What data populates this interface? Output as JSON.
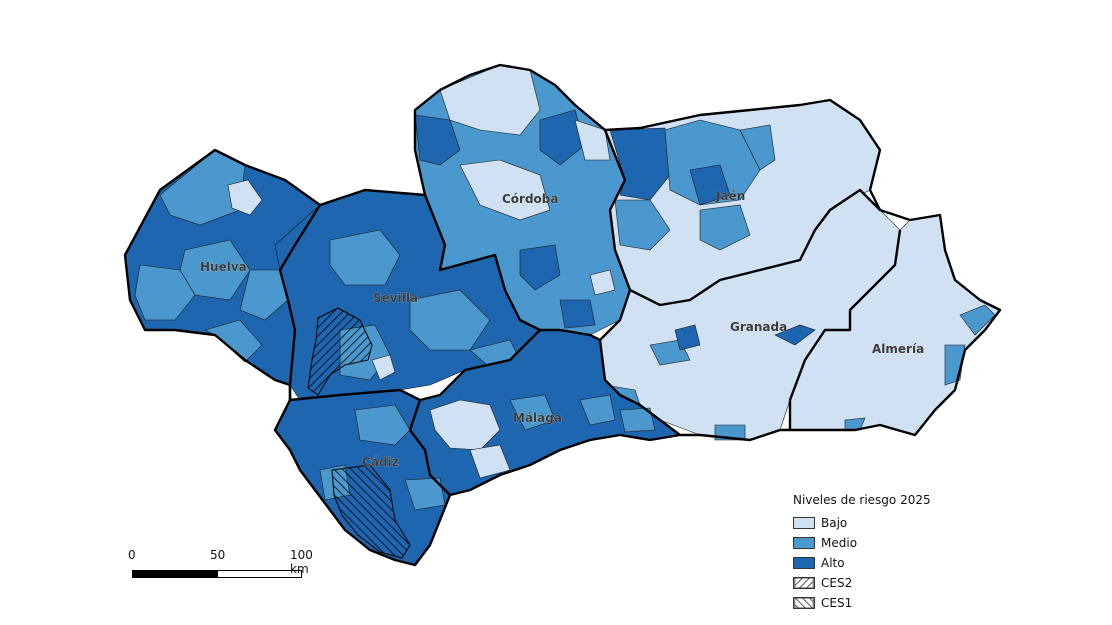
{
  "colors": {
    "bajo": "#cfe1f2",
    "medio": "#4a98cd",
    "alto": "#1f66b0",
    "border": "#000000",
    "background": "#ffffff"
  },
  "provinces": [
    {
      "name": "Huelva"
    },
    {
      "name": "Sevilla"
    },
    {
      "name": "Córdoba"
    },
    {
      "name": "Jaén"
    },
    {
      "name": "Granada"
    },
    {
      "name": "Almería"
    },
    {
      "name": "Málaga"
    },
    {
      "name": "Cádiz"
    }
  ],
  "legend": {
    "title": "Niveles de riesgo 2025",
    "items": [
      {
        "label": "Bajo",
        "fill": "#cfe1f2",
        "pattern": "none"
      },
      {
        "label": "Medio",
        "fill": "#4a98cd",
        "pattern": "none"
      },
      {
        "label": "Alto",
        "fill": "#1f66b0",
        "pattern": "none"
      },
      {
        "label": "CES2",
        "fill": "#ffffff",
        "pattern": "forward-hatch"
      },
      {
        "label": "CES1",
        "fill": "#ffffff",
        "pattern": "back-hatch"
      }
    ]
  },
  "scale": {
    "labels": [
      "0",
      "50",
      "100 km"
    ]
  }
}
